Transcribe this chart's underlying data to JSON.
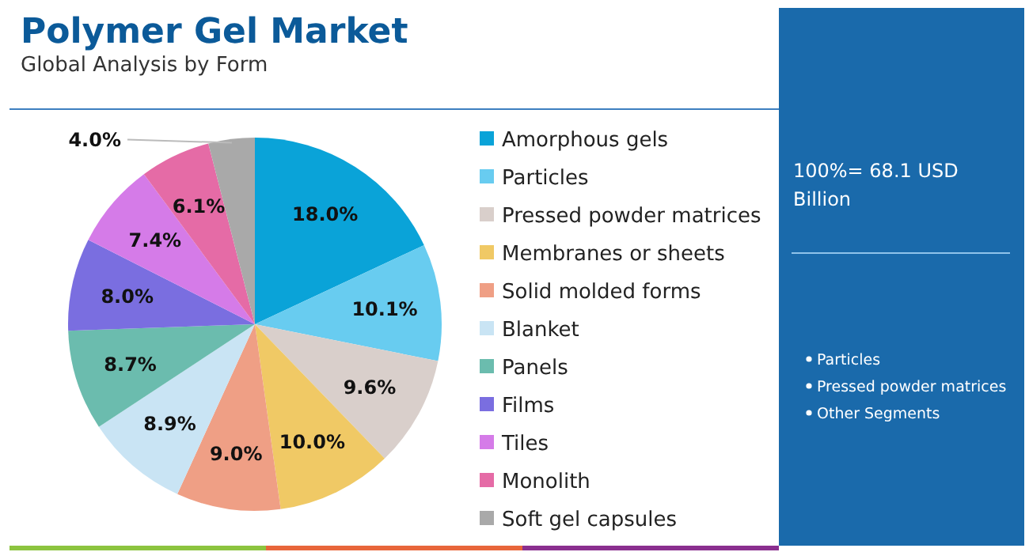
{
  "chart_data": {
    "type": "pie",
    "title": "Polymer Gel Market",
    "subtitle": "Global Analysis by Form",
    "categories": [
      "Amorphous gels",
      "Particles",
      "Pressed powder matrices",
      "Membranes or sheets",
      "Solid molded forms",
      "Blanket",
      "Panels",
      "Films",
      "Tiles",
      "Monolith",
      "Soft gel capsules"
    ],
    "values": [
      18.0,
      10.1,
      9.6,
      10.0,
      9.0,
      8.9,
      8.7,
      8.0,
      7.4,
      6.1,
      4.0
    ],
    "value_labels": [
      "18.0%",
      "10.1%",
      "9.6%",
      "10.0%",
      "9.0%",
      "8.9%",
      "8.7%",
      "8.0%",
      "7.4%",
      "6.1%",
      "4.0%"
    ],
    "colors": [
      "#0aa3d8",
      "#68ccf0",
      "#d9cfcb",
      "#f0c965",
      "#ef9f85",
      "#c9e4f4",
      "#6bbcae",
      "#7a6ee0",
      "#d57be8",
      "#e56ba6",
      "#a9a9a9"
    ],
    "legend": "right",
    "annotations": [
      "100%= 68.1 USD Billion",
      "Particles",
      "Pressed powder matrices",
      "Other Segments"
    ]
  }
}
